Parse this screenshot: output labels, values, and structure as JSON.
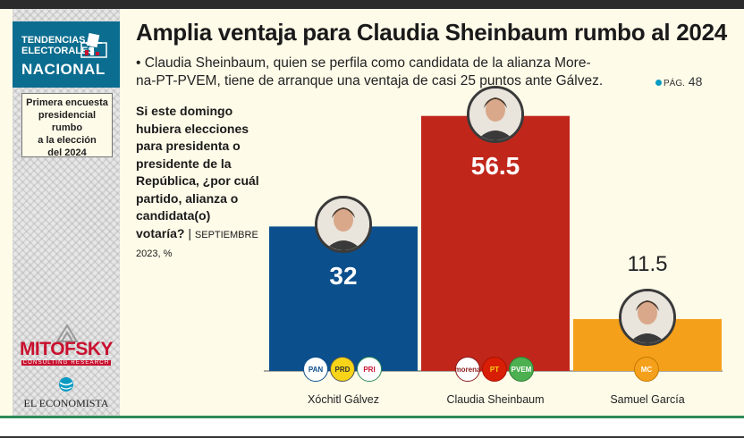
{
  "sidebar": {
    "header_line1": "TENDENCIAS",
    "header_line2": "ELECTORALES",
    "header_line3": "NACIONAL",
    "box_lines": [
      "Primera encuesta",
      "presidencial rumbo",
      "a la elección",
      "del 2024"
    ],
    "logo1": "MITOFSKY",
    "logo1_sub": "CONSULTING RESEARCH",
    "logo2": "EL ECONOMISTA"
  },
  "header": {
    "title": "Amplia ventaja para Claudia Sheinbaum rumbo al 2024",
    "subtitle_line1": "• Claudia Sheinbaum, quien se perfila como candidata de la alianza More-",
    "subtitle_line2": "na-PT-PVEM, tiene de arranque una ventaja de casi 25 puntos ante Gálvez.",
    "page_ref_prefix": "PÁG.",
    "page_ref_number": "48"
  },
  "question": {
    "text": "Si este domingo hubiera elecciones para presidenta o presidente de la República, ¿por cuál partido, alianza o candidata(o) votaría?",
    "separator": "|",
    "date_note": "SEPTIEMBRE 2023, %"
  },
  "chart_data": {
    "type": "bar",
    "title": "",
    "xlabel": "",
    "ylabel": "",
    "unit": "%",
    "categories": [
      "Xóchitl Gálvez",
      "Claudia Sheinbaum",
      "Samuel García"
    ],
    "values": [
      32,
      56.5,
      11.5
    ],
    "value_labels": [
      "32",
      "56.5",
      "11.5"
    ],
    "ylim": [
      0,
      60
    ],
    "colors": [
      "#0b4f8c",
      "#c1261b",
      "#f5a01a"
    ],
    "parties": [
      [
        "PAN",
        "PRD",
        "PRI"
      ],
      [
        "morena",
        "PT",
        "PVEM"
      ],
      [
        "MC"
      ]
    ],
    "grid": false,
    "legend": "none"
  }
}
